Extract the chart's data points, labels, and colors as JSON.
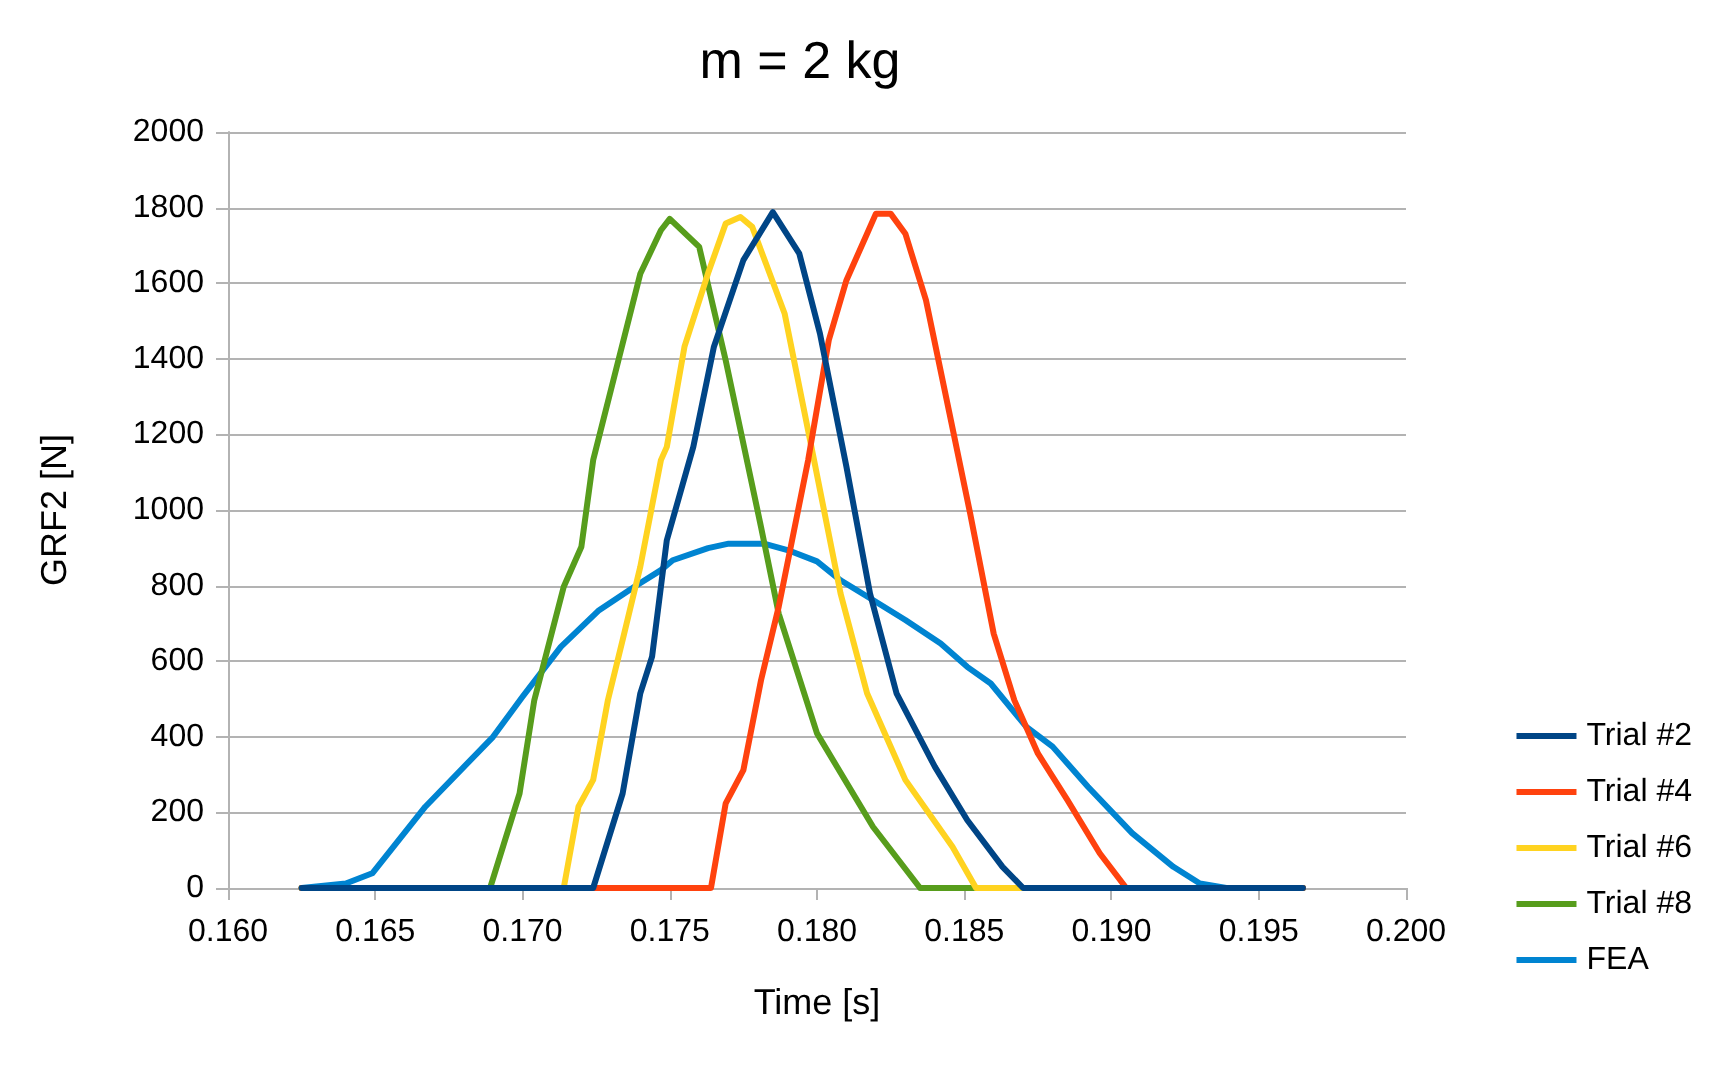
{
  "chart_data": {
    "type": "line",
    "title": "m = 2 kg",
    "xlabel": "Time [s]",
    "ylabel": "GRF2 [N]",
    "xlim": [
      0.16,
      0.2
    ],
    "xticks": [
      {
        "value": 0.16,
        "label": "0.160"
      },
      {
        "value": 0.165,
        "label": "0.165"
      },
      {
        "value": 0.17,
        "label": "0.170"
      },
      {
        "value": 0.175,
        "label": "0.175"
      },
      {
        "value": 0.18,
        "label": "0.180"
      },
      {
        "value": 0.185,
        "label": "0.185"
      },
      {
        "value": 0.19,
        "label": "0.190"
      },
      {
        "value": 0.195,
        "label": "0.195"
      },
      {
        "value": 0.2,
        "label": "0.200"
      }
    ],
    "ylim": [
      0,
      2000
    ],
    "yticks": [
      0,
      200,
      400,
      600,
      800,
      1000,
      1200,
      1400,
      1600,
      1800,
      2000
    ],
    "grid": "y",
    "legend": "right",
    "marker": "none",
    "line_style": "solid",
    "series": [
      {
        "name": "FEA",
        "color": "#0084d1",
        "x": [
          0.1625,
          0.164,
          0.1649,
          0.1667,
          0.169,
          0.17,
          0.1713,
          0.1726,
          0.1738,
          0.1747,
          0.1751,
          0.1763,
          0.177,
          0.1782,
          0.179,
          0.18,
          0.1808,
          0.1819,
          0.183,
          0.1842,
          0.1851,
          0.1859,
          0.1871,
          0.188,
          0.1892,
          0.1907,
          0.1921,
          0.193,
          0.1939,
          0.1965
        ],
        "values": [
          0,
          12,
          39,
          215,
          400,
          506,
          638,
          735,
          797,
          841,
          867,
          899,
          911,
          911,
          894,
          864,
          814,
          762,
          709,
          647,
          585,
          541,
          427,
          374,
          268,
          145,
          56,
          12,
          0,
          0
        ]
      },
      {
        "name": "Trial #8",
        "color": "#579d1c",
        "x": [
          0.1625,
          0.1689,
          0.1699,
          0.1704,
          0.1714,
          0.172,
          0.1724,
          0.174,
          0.1747,
          0.175,
          0.176,
          0.1769,
          0.1781,
          0.1787,
          0.18,
          0.1819,
          0.1835,
          0.1965
        ],
        "values": [
          0,
          0,
          250,
          497,
          797,
          903,
          1132,
          1625,
          1740,
          1770,
          1696,
          1396,
          955,
          726,
          409,
          162,
          0,
          0
        ]
      },
      {
        "name": "Trial #6",
        "color": "#ffd320",
        "x": [
          0.1625,
          0.1714,
          0.1719,
          0.1724,
          0.1729,
          0.1734,
          0.174,
          0.1747,
          0.1749,
          0.1755,
          0.1763,
          0.1769,
          0.1774,
          0.1778,
          0.1789,
          0.1799,
          0.1808,
          0.1817,
          0.183,
          0.1846,
          0.1854,
          0.1965
        ],
        "values": [
          0,
          0,
          215,
          286,
          497,
          656,
          850,
          1132,
          1167,
          1432,
          1626,
          1758,
          1775,
          1749,
          1520,
          1132,
          779,
          515,
          286,
          109,
          0,
          0
        ]
      },
      {
        "name": "Trial #4",
        "color": "#ff420e",
        "x": [
          0.1625,
          0.1764,
          0.1769,
          0.1775,
          0.1781,
          0.1787,
          0.1797,
          0.1804,
          0.181,
          0.1817,
          0.182,
          0.1825,
          0.183,
          0.1837,
          0.1845,
          0.1852,
          0.186,
          0.1867,
          0.1875,
          0.1885,
          0.1896,
          0.1905,
          0.1965
        ],
        "values": [
          0,
          0,
          224,
          312,
          550,
          744,
          1132,
          1449,
          1608,
          1731,
          1784,
          1784,
          1731,
          1555,
          1255,
          991,
          673,
          497,
          356,
          233,
          92,
          0,
          0
        ]
      },
      {
        "name": "Trial #2",
        "color": "#004586",
        "x": [
          0.1625,
          0.1724,
          0.1734,
          0.174,
          0.1744,
          0.1749,
          0.1758,
          0.1765,
          0.1775,
          0.1785,
          0.1794,
          0.1801,
          0.181,
          0.1818,
          0.1827,
          0.184,
          0.1851,
          0.1863,
          0.187,
          0.1965
        ],
        "values": [
          0,
          0,
          250,
          515,
          612,
          920,
          1167,
          1432,
          1661,
          1788,
          1678,
          1467,
          1114,
          779,
          515,
          321,
          180,
          56,
          0,
          0
        ]
      }
    ]
  }
}
